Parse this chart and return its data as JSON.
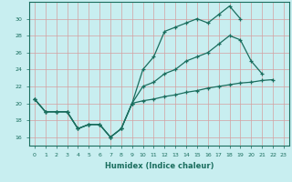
{
  "xlabel": "Humidex (Indice chaleur)",
  "x_values": [
    0,
    1,
    2,
    3,
    4,
    5,
    6,
    7,
    8,
    9,
    10,
    11,
    12,
    13,
    14,
    15,
    16,
    17,
    18,
    19,
    20,
    21,
    22,
    23
  ],
  "line1": [
    20.5,
    19,
    19,
    19,
    17,
    17.5,
    17.5,
    16,
    17,
    20,
    24,
    25.5,
    28.5,
    29,
    29.5,
    30,
    29.5,
    30.5,
    31.5,
    30,
    null,
    null,
    null,
    null
  ],
  "line2": [
    20.5,
    19,
    19,
    19,
    17,
    17.5,
    17.5,
    16,
    17,
    20,
    22,
    22.5,
    23.5,
    24,
    25,
    25.5,
    26,
    27,
    28,
    27.5,
    25,
    23.5,
    null,
    null
  ],
  "line3": [
    20.5,
    19,
    19,
    19,
    17,
    17.5,
    17.5,
    16,
    17,
    20,
    20.3,
    20.5,
    20.8,
    21.0,
    21.3,
    21.5,
    21.8,
    22.0,
    22.2,
    22.4,
    22.5,
    22.7,
    22.8,
    null
  ],
  "line_color": "#1a6e5e",
  "bg_color": "#c8eef0",
  "grid_color": "#d4a0a0",
  "ylim": [
    15,
    32
  ],
  "xlim": [
    -0.5,
    23.5
  ],
  "yticks": [
    16,
    18,
    20,
    22,
    24,
    26,
    28,
    30
  ],
  "xticks": [
    0,
    1,
    2,
    3,
    4,
    5,
    6,
    7,
    8,
    9,
    10,
    11,
    12,
    13,
    14,
    15,
    16,
    17,
    18,
    19,
    20,
    21,
    22,
    23
  ]
}
